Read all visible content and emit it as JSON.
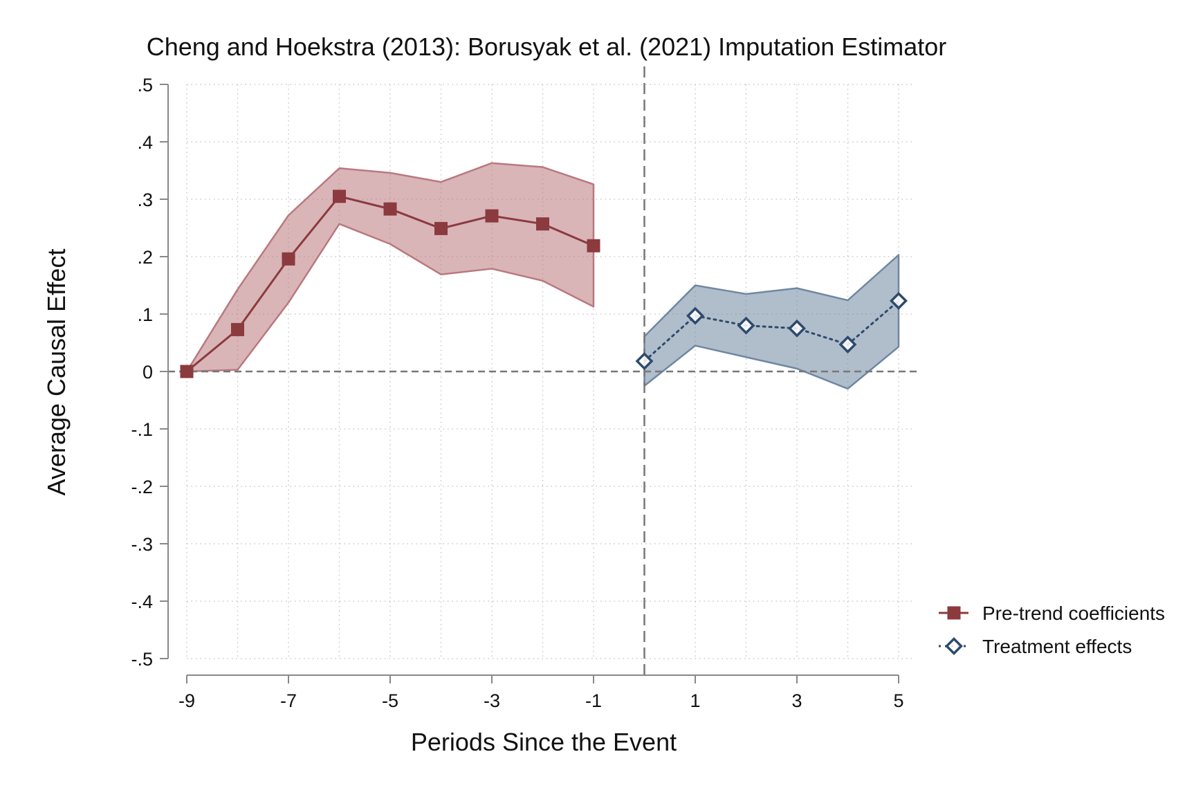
{
  "chart_data": {
    "type": "line",
    "title": "Cheng and Hoekstra (2013): Borusyak et al. (2021) Imputation Estimator",
    "xlabel": "Periods Since the Event",
    "ylabel": "Average Causal Effect",
    "xlim": [
      -9,
      5
    ],
    "ylim": [
      -0.5,
      0.5
    ],
    "x_ticks": [
      -9,
      -7,
      -5,
      -3,
      -1,
      1,
      3,
      5
    ],
    "x_tick_labels": [
      "-9",
      "-7",
      "-5",
      "-3",
      "-1",
      "1",
      "3",
      "5"
    ],
    "y_ticks": [
      0.5,
      0.4,
      0.3,
      0.2,
      0.1,
      0,
      -0.1,
      -0.2,
      -0.3,
      -0.4,
      -0.5
    ],
    "y_tick_labels": [
      ".5",
      ".4",
      ".3",
      ".2",
      ".1",
      "0",
      "-.1",
      "-.2",
      "-.3",
      "-.4",
      "-.5"
    ],
    "grid": true,
    "reference_lines": {
      "horizontal_at": 0,
      "vertical_at": 0
    },
    "legend_position": "right",
    "series": [
      {
        "name": "Pre-trend coefficients",
        "color": "#8b3a3e",
        "band_color": "#b9787e",
        "marker": "filled-square",
        "line_style": "solid",
        "x": [
          -9,
          -8,
          -7,
          -6,
          -5,
          -4,
          -3,
          -2,
          -1
        ],
        "y": [
          0.0,
          0.073,
          0.196,
          0.305,
          0.283,
          0.249,
          0.271,
          0.257,
          0.219
        ],
        "ci_low": [
          0.0,
          0.003,
          0.12,
          0.257,
          0.222,
          0.169,
          0.179,
          0.158,
          0.113
        ],
        "ci_high": [
          0.0,
          0.143,
          0.272,
          0.354,
          0.346,
          0.33,
          0.363,
          0.356,
          0.326
        ]
      },
      {
        "name": "Treatment effects",
        "color": "#2e4a6b",
        "band_color": "#6f87a1",
        "marker": "hollow-diamond",
        "line_style": "dotted",
        "x": [
          0,
          1,
          2,
          3,
          4,
          5
        ],
        "y": [
          0.018,
          0.097,
          0.08,
          0.075,
          0.047,
          0.123
        ],
        "ci_low": [
          -0.025,
          0.045,
          0.025,
          0.005,
          -0.03,
          0.043
        ],
        "ci_high": [
          0.061,
          0.15,
          0.135,
          0.145,
          0.124,
          0.203
        ]
      }
    ]
  }
}
